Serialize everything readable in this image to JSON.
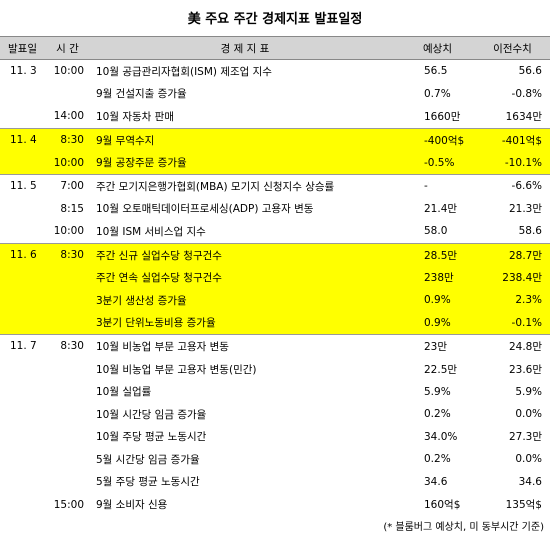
{
  "title": "美 주요 주간 경제지표 발표일정",
  "headers": [
    "발표일",
    "시 간",
    "경 제 지 표",
    "예상치",
    "이전수치"
  ],
  "groups": [
    {
      "date": "11. 3",
      "color": "#ffffff",
      "rows": [
        {
          "time": "10:00",
          "indicator": "10월 공급관리자협회(ISM) 제조업 지수",
          "forecast": "56.5",
          "previous": "56.6"
        },
        {
          "indicator": "9월 건설지출 증가율",
          "forecast": "0.7%",
          "previous": "-0.8%"
        },
        {
          "time": "14:00",
          "indicator": "10월 자동차 판매",
          "forecast": "1660만",
          "previous": "1634만"
        }
      ]
    },
    {
      "date": "11. 4",
      "color": "#ffff00",
      "rows": [
        {
          "time": "8:30",
          "indicator": "9월 무역수지",
          "forecast": "-400억$",
          "previous": "-401억$"
        },
        {
          "time": "10:00",
          "indicator": "9월 공장주문 증가율",
          "forecast": "-0.5%",
          "previous": "-10.1%"
        }
      ]
    },
    {
      "date": "11. 5",
      "color": "#ffffff",
      "rows": [
        {
          "time": "7:00",
          "indicator": "주간 모기지은행가협회(MBA) 모기지 신청지수 상승률",
          "forecast": "-",
          "previous": "-6.6%"
        },
        {
          "time": "8:15",
          "indicator": "10월 오토매틱데이터프로세싱(ADP) 고용자 변동",
          "forecast": "21.4만",
          "previous": "21.3만"
        },
        {
          "time": "10:00",
          "indicator": "10월 ISM 서비스업 지수",
          "forecast": "58.0",
          "previous": "58.6"
        }
      ]
    },
    {
      "date": "11. 6",
      "color": "#ffff00",
      "rows": [
        {
          "time": "8:30",
          "indicator": "주간 신규 실업수당 청구건수",
          "forecast": "28.5만",
          "previous": "28.7만"
        },
        {
          "indicator": "주간 연속 실업수당 청구건수",
          "forecast": "238만",
          "previous": "238.4만"
        },
        {
          "indicator": "3분기 생산성 증가율",
          "forecast": "0.9%",
          "previous": "2.3%"
        },
        {
          "indicator": "3분기 단위노동비용 증가율",
          "forecast": "0.9%",
          "previous": "-0.1%"
        }
      ]
    },
    {
      "date": "11. 7",
      "color": "#ffffff",
      "rows": [
        {
          "time": "8:30",
          "indicator": "10월 비농업 부문 고용자 변동",
          "forecast": "23만",
          "previous": "24.8만"
        },
        {
          "indicator": "10월 비농업 부문 고용자 변동(민간)",
          "forecast": "22.5만",
          "previous": "23.6만"
        },
        {
          "indicator": "10월 실업률",
          "forecast": "5.9%",
          "previous": "5.9%"
        },
        {
          "indicator": "10월 시간당 임금 증가율",
          "forecast": "0.2%",
          "previous": "0.0%"
        },
        {
          "indicator": "10월 주당 평균 노동시간",
          "forecast": "34.0%",
          "previous": "27.3만"
        },
        {
          "indicator": "5월 시간당 임금 증가율",
          "forecast": "0.2%",
          "previous": "0.0%"
        },
        {
          "indicator": "5월 주당 평균 노동시간",
          "forecast": "34.6",
          "previous": "34.6"
        },
        {
          "time": "15:00",
          "indicator": "9월 소비자 신용",
          "forecast": "160억$",
          "previous": "135억$"
        }
      ]
    }
  ],
  "footnote": "(* 블룸버그 예상치, 미 동부시간 기준)"
}
